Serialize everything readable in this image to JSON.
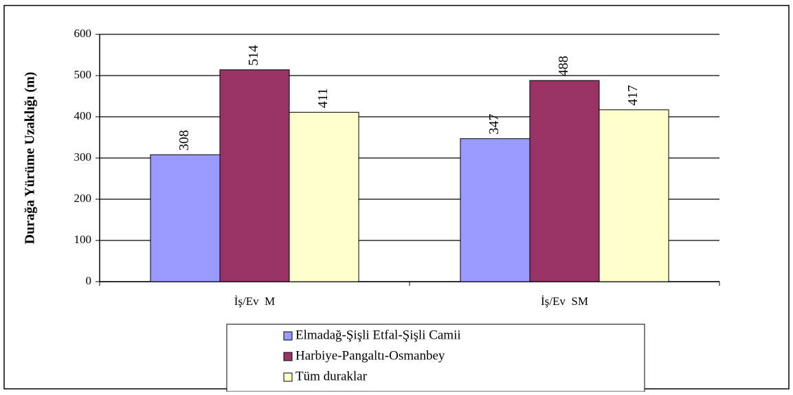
{
  "chart_data": {
    "type": "bar",
    "y_label": "Durağa Yürüme Uzaklığı (m)",
    "categories": [
      "İş/Ev  M",
      "İş/Ev  SM"
    ],
    "series": [
      {
        "name": "Elmadağ-Şişli Etfal-Şişli Camii",
        "color": "#9999ff",
        "values": [
          308,
          347
        ]
      },
      {
        "name": "Harbiye-Pangaltı-Osmanbey",
        "color": "#993366",
        "values": [
          514,
          488
        ]
      },
      {
        "name": "Tüm duraklar",
        "color": "#ffffcc",
        "values": [
          411,
          417
        ]
      }
    ],
    "ylim": [
      0,
      600
    ],
    "yticks": [
      0,
      100,
      200,
      300,
      400,
      500,
      600
    ],
    "grid": true
  }
}
